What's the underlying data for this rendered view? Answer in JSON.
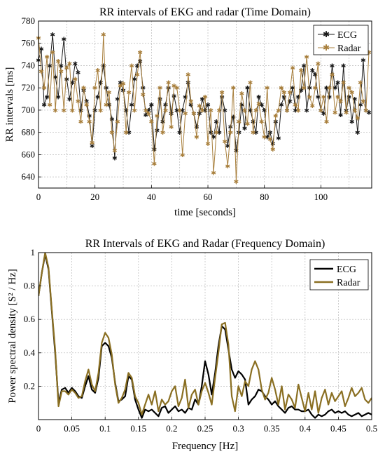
{
  "chart_data": [
    {
      "type": "line",
      "title": "RR intervals of EKG and radar (Time Domain)",
      "xlabel": "time [seconds]",
      "ylabel": "RR intervals [ms]",
      "xlim": [
        0,
        118
      ],
      "ylim": [
        630,
        780
      ],
      "xticks": [
        0,
        20,
        40,
        60,
        80,
        100
      ],
      "yticks": [
        640,
        660,
        680,
        700,
        720,
        740,
        760,
        780
      ],
      "grid": true,
      "legend_position": "top-right",
      "series": [
        {
          "name": "ECG",
          "color": "#1a1a1a",
          "marker": "asterisk",
          "x": [
            0,
            1,
            2,
            3,
            4,
            5,
            6,
            7,
            8,
            9,
            10,
            11,
            12,
            13,
            14,
            15,
            16,
            17,
            18,
            19,
            20,
            21,
            22,
            23,
            24,
            25,
            26,
            27,
            28,
            29,
            30,
            31,
            32,
            33,
            34,
            35,
            36,
            37,
            38,
            39,
            40,
            41,
            42,
            43,
            44,
            45,
            46,
            47,
            48,
            49,
            50,
            51,
            52,
            53,
            54,
            55,
            56,
            57,
            58,
            59,
            60,
            61,
            62,
            63,
            64,
            65,
            66,
            67,
            68,
            69,
            70,
            71,
            72,
            73,
            74,
            75,
            76,
            77,
            78,
            79,
            80,
            81,
            82,
            83,
            84,
            85,
            86,
            87,
            88,
            89,
            90,
            91,
            92,
            93,
            94,
            95,
            96,
            97,
            98,
            99,
            100,
            101,
            102,
            103,
            104,
            105,
            106,
            107,
            108,
            109,
            110,
            111,
            112,
            113,
            114,
            115,
            116,
            117
          ],
          "y": [
            745,
            755,
            705,
            712,
            740,
            768,
            730,
            712,
            740,
            764,
            728,
            710,
            725,
            742,
            734,
            700,
            718,
            708,
            695,
            668,
            700,
            712,
            725,
            740,
            720,
            705,
            692,
            657,
            710,
            725,
            718,
            700,
            680,
            705,
            728,
            740,
            744,
            720,
            696,
            700,
            705,
            665,
            682,
            710,
            690,
            705,
            720,
            697,
            713,
            700,
            680,
            700,
            712,
            725,
            705,
            697,
            685,
            697,
            710,
            700,
            705,
            680,
            676,
            690,
            680,
            712,
            700,
            668,
            685,
            694,
            664,
            680,
            705,
            684,
            720,
            700,
            690,
            680,
            712,
            705,
            700,
            676,
            680,
            670,
            690,
            675,
            705,
            712,
            700,
            708,
            720,
            700,
            712,
            718,
            740,
            700,
            720,
            736,
            732,
            712,
            700,
            697,
            720,
            712,
            740,
            720,
            725,
            696,
            740,
            700,
            712,
            690,
            710,
            680,
            705,
            745,
            700,
            698
          ]
        },
        {
          "name": "Radar",
          "color": "#a87f3c",
          "marker": "asterisk",
          "x": [
            0,
            1,
            2,
            3,
            4,
            5,
            6,
            7,
            8,
            9,
            10,
            11,
            12,
            13,
            14,
            15,
            16,
            17,
            18,
            19,
            20,
            21,
            22,
            23,
            24,
            25,
            26,
            27,
            28,
            29,
            30,
            31,
            32,
            33,
            34,
            35,
            36,
            37,
            38,
            39,
            40,
            41,
            42,
            43,
            44,
            45,
            46,
            47,
            48,
            49,
            50,
            51,
            52,
            53,
            54,
            55,
            56,
            57,
            58,
            59,
            60,
            61,
            62,
            63,
            64,
            65,
            66,
            67,
            68,
            69,
            70,
            71,
            72,
            73,
            74,
            75,
            76,
            77,
            78,
            79,
            80,
            81,
            82,
            83,
            84,
            85,
            86,
            87,
            88,
            89,
            90,
            91,
            92,
            93,
            94,
            95,
            96,
            97,
            98,
            99,
            100,
            101,
            102,
            103,
            104,
            105,
            106,
            107,
            108,
            109,
            110,
            111,
            112,
            113,
            114,
            115,
            116,
            117
          ],
          "y": [
            765,
            735,
            720,
            748,
            705,
            752,
            700,
            744,
            735,
            700,
            738,
            742,
            700,
            728,
            708,
            690,
            720,
            705,
            690,
            671,
            720,
            736,
            700,
            768,
            705,
            716,
            680,
            664,
            690,
            722,
            724,
            680,
            716,
            740,
            700,
            732,
            752,
            714,
            700,
            697,
            690,
            652,
            695,
            720,
            680,
            700,
            725,
            685,
            722,
            720,
            700,
            660,
            697,
            732,
            708,
            697,
            676,
            704,
            700,
            712,
            670,
            700,
            644,
            680,
            700,
            716,
            672,
            650,
            680,
            720,
            636,
            690,
            715,
            700,
            688,
            725,
            680,
            700,
            706,
            690,
            676,
            720,
            674,
            665,
            695,
            700,
            720,
            716,
            700,
            716,
            738,
            705,
            700,
            736,
            720,
            748,
            712,
            704,
            720,
            742,
            700,
            712,
            690,
            720,
            732,
            698,
            712,
            708,
            725,
            698,
            720,
            716,
            700,
            693,
            725,
            708,
            700,
            752
          ]
        }
      ]
    },
    {
      "type": "line",
      "title": "RR Intervals of EKG and Radar (Frequency Domain)",
      "xlabel": "Frequency [Hz]",
      "ylabel": "Power spectral density [S² / Hz]",
      "xlim": [
        0,
        0.5
      ],
      "ylim": [
        0,
        1
      ],
      "xticks": [
        0,
        0.05,
        0.1,
        0.15,
        0.2,
        0.25,
        0.3,
        0.35,
        0.4,
        0.45,
        0.5
      ],
      "yticks": [
        0.2,
        0.4,
        0.6,
        0.8,
        1
      ],
      "grid": true,
      "legend_position": "top-right",
      "series": [
        {
          "name": "ECG",
          "color": "#000000",
          "x": [
            0,
            0.005,
            0.01,
            0.015,
            0.02,
            0.025,
            0.03,
            0.035,
            0.04,
            0.045,
            0.05,
            0.055,
            0.06,
            0.065,
            0.07,
            0.075,
            0.08,
            0.085,
            0.09,
            0.095,
            0.1,
            0.105,
            0.11,
            0.115,
            0.12,
            0.125,
            0.13,
            0.135,
            0.14,
            0.145,
            0.15,
            0.155,
            0.16,
            0.165,
            0.17,
            0.175,
            0.18,
            0.185,
            0.19,
            0.195,
            0.2,
            0.205,
            0.21,
            0.215,
            0.22,
            0.225,
            0.23,
            0.235,
            0.24,
            0.245,
            0.25,
            0.255,
            0.26,
            0.265,
            0.27,
            0.275,
            0.28,
            0.285,
            0.29,
            0.295,
            0.3,
            0.305,
            0.31,
            0.315,
            0.32,
            0.325,
            0.33,
            0.335,
            0.34,
            0.345,
            0.35,
            0.355,
            0.36,
            0.365,
            0.37,
            0.375,
            0.38,
            0.385,
            0.39,
            0.395,
            0.4,
            0.405,
            0.41,
            0.415,
            0.42,
            0.425,
            0.43,
            0.435,
            0.44,
            0.445,
            0.45,
            0.455,
            0.46,
            0.465,
            0.47,
            0.475,
            0.48,
            0.485,
            0.49,
            0.495,
            0.5
          ],
          "y": [
            0.74,
            0.88,
            0.99,
            0.9,
            0.65,
            0.4,
            0.1,
            0.18,
            0.19,
            0.16,
            0.19,
            0.17,
            0.14,
            0.13,
            0.2,
            0.26,
            0.18,
            0.16,
            0.25,
            0.44,
            0.46,
            0.44,
            0.37,
            0.22,
            0.11,
            0.12,
            0.14,
            0.26,
            0.24,
            0.12,
            0.06,
            0.01,
            0.06,
            0.05,
            0.06,
            0.04,
            0.02,
            0.07,
            0.08,
            0.04,
            0.06,
            0.08,
            0.05,
            0.06,
            0.04,
            0.07,
            0.06,
            0.12,
            0.09,
            0.2,
            0.35,
            0.27,
            0.15,
            0.28,
            0.44,
            0.56,
            0.54,
            0.42,
            0.3,
            0.25,
            0.29,
            0.27,
            0.24,
            0.09,
            0.12,
            0.14,
            0.18,
            0.17,
            0.14,
            0.12,
            0.09,
            0.11,
            0.08,
            0.06,
            0.04,
            0.07,
            0.08,
            0.06,
            0.06,
            0.05,
            0.05,
            0.06,
            0.03,
            0.01,
            0.03,
            0.02,
            0.03,
            0.05,
            0.06,
            0.04,
            0.05,
            0.04,
            0.05,
            0.03,
            0.02,
            0.03,
            0.04,
            0.02,
            0.03,
            0.04,
            0.03
          ]
        },
        {
          "name": "Radar",
          "color": "#8a6f22",
          "x": [
            0,
            0.005,
            0.01,
            0.015,
            0.02,
            0.025,
            0.03,
            0.035,
            0.04,
            0.045,
            0.05,
            0.055,
            0.06,
            0.065,
            0.07,
            0.075,
            0.08,
            0.085,
            0.09,
            0.095,
            0.1,
            0.105,
            0.11,
            0.115,
            0.12,
            0.125,
            0.13,
            0.135,
            0.14,
            0.145,
            0.15,
            0.155,
            0.16,
            0.165,
            0.17,
            0.175,
            0.18,
            0.185,
            0.19,
            0.195,
            0.2,
            0.205,
            0.21,
            0.215,
            0.22,
            0.225,
            0.23,
            0.235,
            0.24,
            0.245,
            0.25,
            0.255,
            0.26,
            0.265,
            0.27,
            0.275,
            0.28,
            0.285,
            0.29,
            0.295,
            0.3,
            0.305,
            0.31,
            0.315,
            0.32,
            0.325,
            0.33,
            0.335,
            0.34,
            0.345,
            0.35,
            0.355,
            0.36,
            0.365,
            0.37,
            0.375,
            0.38,
            0.385,
            0.39,
            0.395,
            0.4,
            0.405,
            0.41,
            0.415,
            0.42,
            0.425,
            0.43,
            0.435,
            0.44,
            0.445,
            0.45,
            0.455,
            0.46,
            0.465,
            0.47,
            0.475,
            0.48,
            0.485,
            0.49,
            0.495,
            0.5
          ],
          "y": [
            0.74,
            0.88,
            1.0,
            0.91,
            0.66,
            0.42,
            0.08,
            0.17,
            0.17,
            0.15,
            0.18,
            0.16,
            0.13,
            0.14,
            0.23,
            0.3,
            0.21,
            0.17,
            0.28,
            0.46,
            0.52,
            0.49,
            0.39,
            0.21,
            0.1,
            0.13,
            0.18,
            0.28,
            0.25,
            0.14,
            0.1,
            0.03,
            0.09,
            0.15,
            0.09,
            0.17,
            0.05,
            0.12,
            0.09,
            0.11,
            0.17,
            0.2,
            0.08,
            0.13,
            0.24,
            0.07,
            0.15,
            0.18,
            0.09,
            0.17,
            0.22,
            0.16,
            0.09,
            0.25,
            0.4,
            0.57,
            0.58,
            0.45,
            0.14,
            0.05,
            0.2,
            0.14,
            0.23,
            0.2,
            0.3,
            0.35,
            0.3,
            0.18,
            0.12,
            0.16,
            0.25,
            0.18,
            0.09,
            0.2,
            0.06,
            0.15,
            0.12,
            0.07,
            0.21,
            0.13,
            0.05,
            0.16,
            0.06,
            0.17,
            0.04,
            0.13,
            0.18,
            0.09,
            0.16,
            0.11,
            0.14,
            0.17,
            0.08,
            0.13,
            0.19,
            0.14,
            0.16,
            0.19,
            0.12,
            0.1,
            0.13
          ]
        }
      ]
    }
  ]
}
